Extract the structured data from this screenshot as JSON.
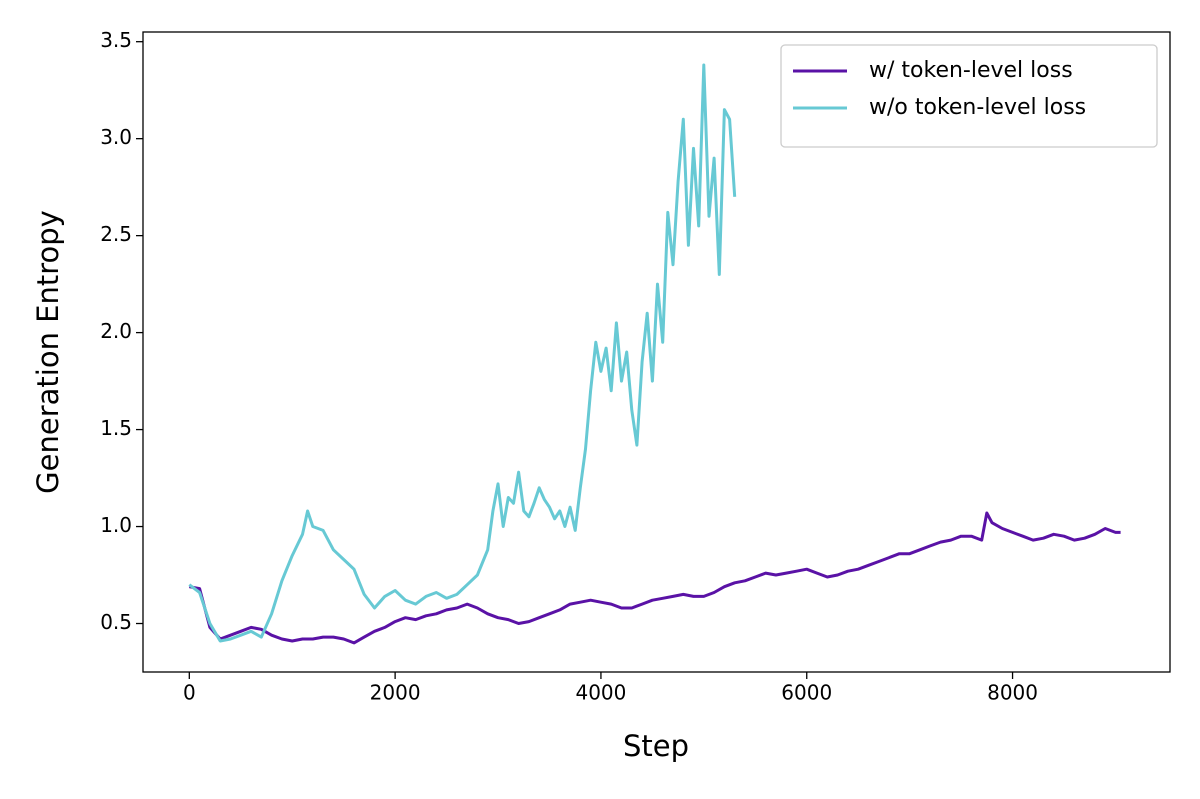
{
  "chart_data": {
    "type": "line",
    "xlabel": "Step",
    "ylabel": "Generation Entropy",
    "xlim": [
      -450,
      9530
    ],
    "ylim": [
      0.25,
      3.55
    ],
    "xticks": [
      0,
      2000,
      4000,
      6000,
      8000
    ],
    "yticks": [
      0.5,
      {
        "value": 1,
        "label": "1.0"
      },
      1.5,
      {
        "value": 2,
        "label": "2.0"
      },
      2.5,
      {
        "value": 3,
        "label": "3.0"
      },
      3.5
    ],
    "legend": "upper right",
    "series": [
      {
        "name": "w/ token-level loss",
        "color": "#5a12a6",
        "x": [
          0,
          100,
          200,
          300,
          400,
          500,
          600,
          700,
          800,
          900,
          1000,
          1100,
          1200,
          1300,
          1400,
          1500,
          1600,
          1700,
          1800,
          1900,
          2000,
          2100,
          2200,
          2300,
          2400,
          2500,
          2600,
          2700,
          2800,
          2900,
          3000,
          3100,
          3200,
          3300,
          3400,
          3500,
          3600,
          3700,
          3800,
          3900,
          4000,
          4100,
          4200,
          4300,
          4400,
          4500,
          4600,
          4700,
          4800,
          4900,
          5000,
          5100,
          5200,
          5300,
          5400,
          5500,
          5600,
          5700,
          5800,
          5900,
          6000,
          6100,
          6200,
          6300,
          6400,
          6500,
          6600,
          6700,
          6800,
          6900,
          7000,
          7100,
          7200,
          7300,
          7400,
          7500,
          7600,
          7700,
          7750,
          7800,
          7900,
          8000,
          8100,
          8200,
          8300,
          8400,
          8500,
          8600,
          8700,
          8800,
          8900,
          9000,
          9050
        ],
        "values": [
          0.69,
          0.68,
          0.48,
          0.42,
          0.44,
          0.46,
          0.48,
          0.47,
          0.44,
          0.42,
          0.41,
          0.42,
          0.42,
          0.43,
          0.43,
          0.42,
          0.4,
          0.43,
          0.46,
          0.48,
          0.51,
          0.53,
          0.52,
          0.54,
          0.55,
          0.57,
          0.58,
          0.6,
          0.58,
          0.55,
          0.53,
          0.52,
          0.5,
          0.51,
          0.53,
          0.55,
          0.57,
          0.6,
          0.61,
          0.62,
          0.61,
          0.6,
          0.58,
          0.58,
          0.6,
          0.62,
          0.63,
          0.64,
          0.65,
          0.64,
          0.64,
          0.66,
          0.69,
          0.71,
          0.72,
          0.74,
          0.76,
          0.75,
          0.76,
          0.77,
          0.78,
          0.76,
          0.74,
          0.75,
          0.77,
          0.78,
          0.8,
          0.82,
          0.84,
          0.86,
          0.86,
          0.88,
          0.9,
          0.92,
          0.93,
          0.95,
          0.95,
          0.93,
          1.07,
          1.02,
          0.99,
          0.97,
          0.95,
          0.93,
          0.94,
          0.96,
          0.95,
          0.93,
          0.94,
          0.96,
          0.99,
          0.97,
          0.97
        ]
      },
      {
        "name": "w/o token-level loss",
        "color": "#67c9d4",
        "x": [
          0,
          100,
          200,
          300,
          400,
          500,
          600,
          700,
          800,
          900,
          1000,
          1100,
          1150,
          1200,
          1300,
          1400,
          1500,
          1600,
          1700,
          1800,
          1900,
          2000,
          2100,
          2200,
          2300,
          2400,
          2500,
          2600,
          2700,
          2800,
          2900,
          2950,
          3000,
          3050,
          3100,
          3150,
          3200,
          3250,
          3300,
          3350,
          3400,
          3450,
          3500,
          3550,
          3600,
          3650,
          3700,
          3750,
          3800,
          3850,
          3900,
          3950,
          4000,
          4050,
          4100,
          4150,
          4200,
          4250,
          4300,
          4350,
          4400,
          4450,
          4500,
          4550,
          4600,
          4650,
          4700,
          4750,
          4800,
          4850,
          4900,
          4950,
          5000,
          5050,
          5100,
          5150,
          5200,
          5250,
          5300
        ],
        "values": [
          0.7,
          0.66,
          0.5,
          0.41,
          0.42,
          0.44,
          0.46,
          0.43,
          0.55,
          0.72,
          0.85,
          0.96,
          1.08,
          1.0,
          0.98,
          0.88,
          0.83,
          0.78,
          0.65,
          0.58,
          0.64,
          0.67,
          0.62,
          0.6,
          0.64,
          0.66,
          0.63,
          0.65,
          0.7,
          0.75,
          0.88,
          1.08,
          1.22,
          1.0,
          1.15,
          1.12,
          1.28,
          1.08,
          1.05,
          1.12,
          1.2,
          1.14,
          1.1,
          1.04,
          1.08,
          1.0,
          1.1,
          0.98,
          1.2,
          1.4,
          1.7,
          1.95,
          1.8,
          1.92,
          1.7,
          2.05,
          1.75,
          1.9,
          1.6,
          1.42,
          1.85,
          2.1,
          1.75,
          2.25,
          1.95,
          2.62,
          2.35,
          2.78,
          3.1,
          2.45,
          2.95,
          2.55,
          3.38,
          2.6,
          2.9,
          2.3,
          3.15,
          3.1,
          2.7
        ]
      }
    ]
  }
}
